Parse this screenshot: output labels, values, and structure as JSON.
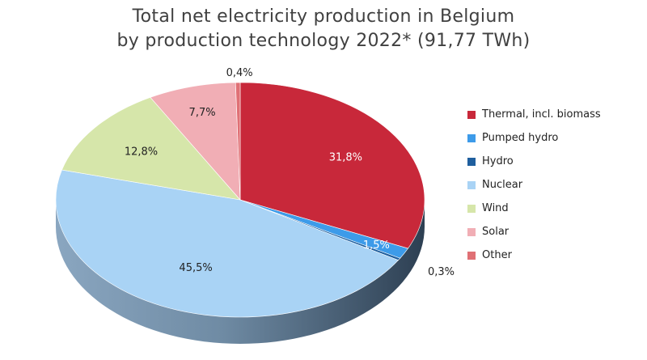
{
  "chart_data": {
    "type": "pie",
    "title_line1": "Total net electricity production in Belgium",
    "title_line2": "by production technology 2022* (91,77 TWh)",
    "legend_position": "right",
    "slices": [
      {
        "name": "Thermal, incl. biomass",
        "value": 31.8,
        "label": "31,8%",
        "color": "#c8283a",
        "text_color": "#ffffff"
      },
      {
        "name": "Pumped hydro",
        "value": 1.5,
        "label": "1,5%",
        "color": "#3d9be9",
        "text_color": "#ffffff"
      },
      {
        "name": "Hydro",
        "value": 0.3,
        "label": "0,3%",
        "color": "#1f5f9e",
        "text_color": "#222222"
      },
      {
        "name": "Nuclear",
        "value": 45.5,
        "label": "45,5%",
        "color": "#a9d3f5",
        "text_color": "#222222"
      },
      {
        "name": "Wind",
        "value": 12.8,
        "label": "12,8%",
        "color": "#d6e6aa",
        "text_color": "#222222"
      },
      {
        "name": "Solar",
        "value": 7.7,
        "label": "7,7%",
        "color": "#f1aeb5",
        "text_color": "#222222"
      },
      {
        "name": "Other",
        "value": 0.4,
        "label": "0,4%",
        "color": "#e07075",
        "text_color": "#222222"
      }
    ]
  }
}
